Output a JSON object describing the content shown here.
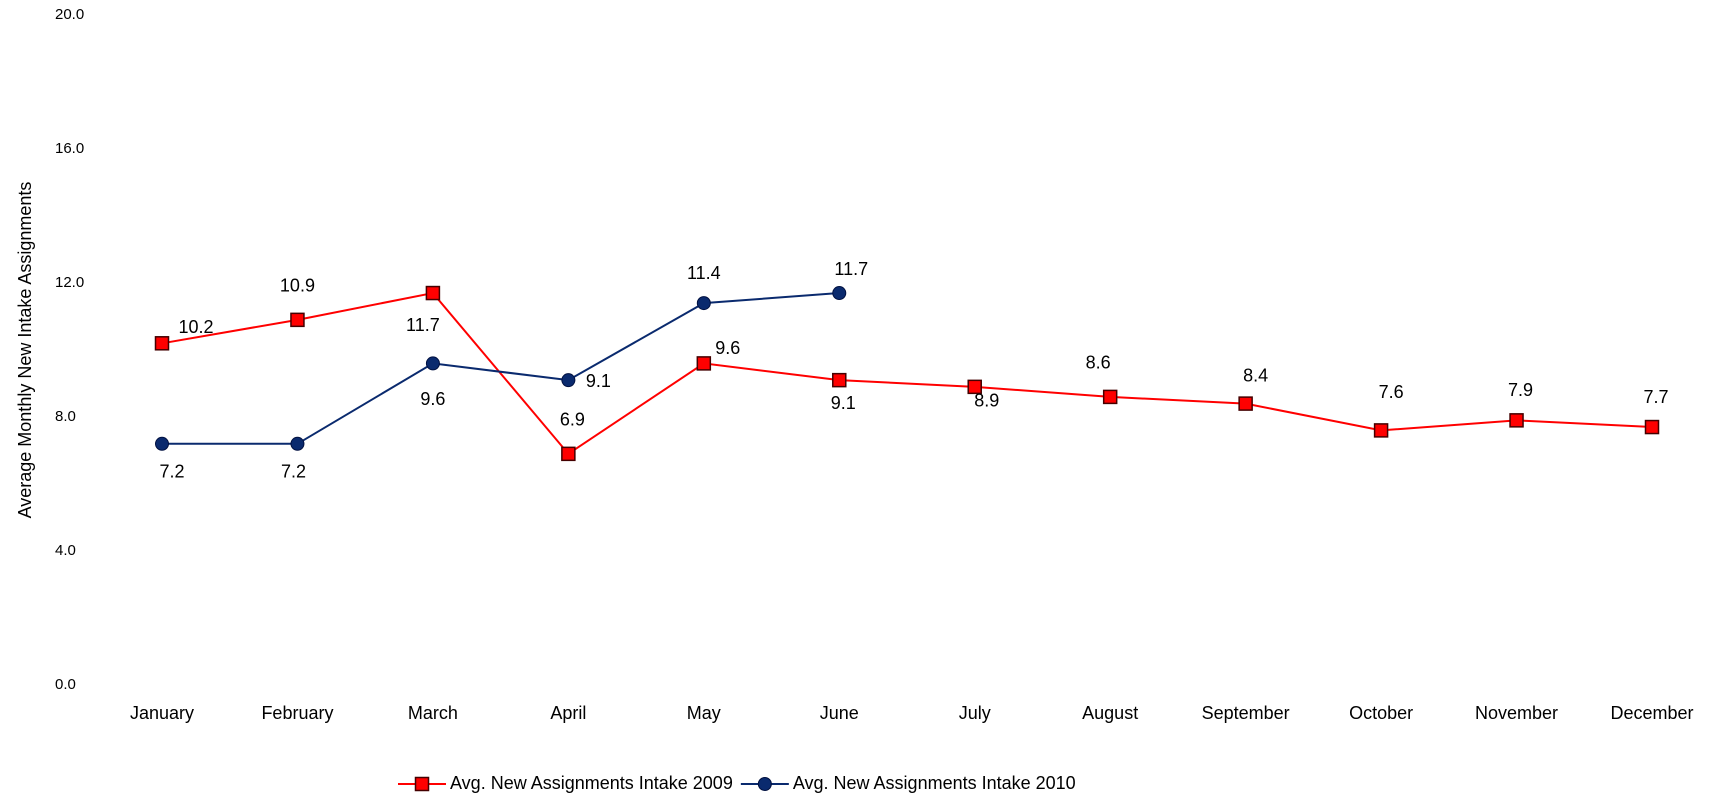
{
  "chart_data": {
    "type": "line",
    "y_label": "Average Monthly New Intake Assignments",
    "categories": [
      "January",
      "February",
      "March",
      "April",
      "May",
      "June",
      "July",
      "August",
      "September",
      "October",
      "November",
      "December"
    ],
    "series": [
      {
        "name": "Avg. New Assignments Intake 2009",
        "color": "#ff0000",
        "marker": "square",
        "values": [
          10.2,
          10.9,
          11.7,
          6.9,
          9.6,
          9.1,
          8.9,
          8.6,
          8.4,
          7.6,
          7.9,
          7.7
        ]
      },
      {
        "name": "Avg. New Assignments Intake 2010",
        "color": "#0a2a6e",
        "marker": "circle",
        "values": [
          7.2,
          7.2,
          9.6,
          9.1,
          11.4,
          11.7,
          null,
          null,
          null,
          null,
          null,
          null
        ]
      }
    ],
    "ylim": [
      0,
      20
    ],
    "yticks": [
      {
        "value": 0,
        "label": "0.0"
      },
      {
        "value": 4,
        "label": "4.0"
      },
      {
        "value": 8,
        "label": "8.0"
      },
      {
        "value": 12,
        "label": "12.0"
      },
      {
        "value": 16,
        "label": "16.0"
      },
      {
        "value": 20,
        "label": "20.0"
      }
    ],
    "grid": false,
    "legend": "bottom"
  }
}
